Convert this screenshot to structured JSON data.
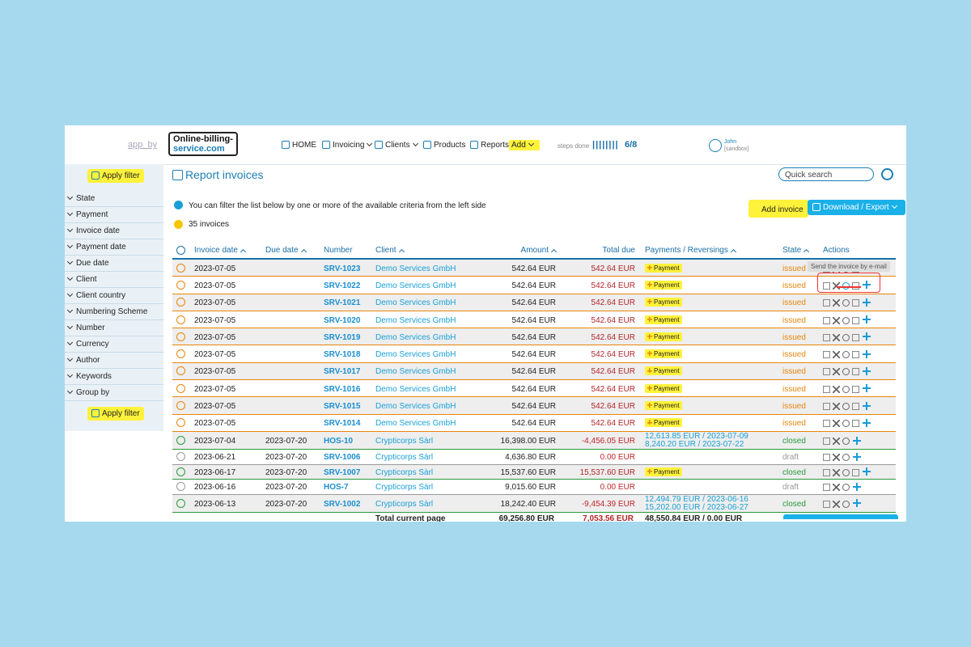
{
  "header": {
    "app_by": "app_by",
    "logo": [
      "Online-billing-",
      "service.com"
    ],
    "nav": [
      "HOME",
      "Invoicing",
      "Clients",
      "Products",
      "Reports",
      "Add"
    ],
    "steps_label": "steps done",
    "steps_bars": "||||||||",
    "steps": "6/8",
    "user": "John",
    "user_sub": "[sandbox]"
  },
  "sidebar": {
    "apply_filter": "Apply filter",
    "filters": [
      "State",
      "Payment",
      "Invoice date",
      "Payment date",
      "Due date",
      "Client",
      "Client country",
      "Numbering Scheme",
      "Number",
      "Currency",
      "Author",
      "Keywords",
      "Group by"
    ]
  },
  "main": {
    "title": "Report invoices",
    "search": "Quick search",
    "info": "You can filter the list below by one or more of the available criteria from the left side",
    "count": "35 invoices",
    "add_invoice": "Add invoice",
    "download": "Download / Export",
    "tooltip": "Send the invoice by e-mail"
  },
  "table": {
    "columns": [
      "Invoice date",
      "Due date",
      "Number",
      "Client",
      "Amount",
      "Total due",
      "Payments / Reversings",
      "State",
      "Actions"
    ],
    "rows": [
      [
        "2023-07-05",
        null,
        "SRV-1023",
        "Demo Services GmbH",
        "542.64 EUR",
        "542.64 EUR",
        "Payment",
        "issued"
      ],
      [
        "2023-07-05",
        null,
        "SRV-1022",
        "Demo Services GmbH",
        "542.64 EUR",
        "542.64 EUR",
        "Payment",
        "issued"
      ],
      [
        "2023-07-05",
        null,
        "SRV-1021",
        "Demo Services GmbH",
        "542.64 EUR",
        "542.64 EUR",
        "Payment",
        "issued"
      ],
      [
        "2023-07-05",
        null,
        "SRV-1020",
        "Demo Services GmbH",
        "542.64 EUR",
        "542.64 EUR",
        "Payment",
        "issued"
      ],
      [
        "2023-07-05",
        null,
        "SRV-1019",
        "Demo Services GmbH",
        "542.64 EUR",
        "542.64 EUR",
        "Payment",
        "issued"
      ],
      [
        "2023-07-05",
        null,
        "SRV-1018",
        "Demo Services GmbH",
        "542.64 EUR",
        "542.64 EUR",
        "Payment",
        "issued"
      ],
      [
        "2023-07-05",
        null,
        "SRV-1017",
        "Demo Services GmbH",
        "542.64 EUR",
        "542.64 EUR",
        "Payment",
        "issued"
      ],
      [
        "2023-07-05",
        null,
        "SRV-1016",
        "Demo Services GmbH",
        "542.64 EUR",
        "542.64 EUR",
        "Payment",
        "issued"
      ],
      [
        "2023-07-05",
        null,
        "SRV-1015",
        "Demo Services GmbH",
        "542.64 EUR",
        "542.64 EUR",
        "Payment",
        "issued"
      ],
      [
        "2023-07-05",
        null,
        "SRV-1014",
        "Demo Services GmbH",
        "542.64 EUR",
        "542.64 EUR",
        "Payment",
        "issued"
      ],
      [
        "2023-07-04",
        "2023-07-20",
        "HOS-10",
        "Crypticorps Sàrl",
        "16,398.00 EUR",
        "-4,456.05 EUR",
        [
          "12,613.85 EUR / 2023-07-09",
          "8,240.20 EUR / 2023-07-22"
        ],
        "closed"
      ],
      [
        "2023-06-21",
        "2023-07-20",
        "SRV-1006",
        "Crypticorps Sàrl",
        "4,636.80 EUR",
        "0.00 EUR",
        null,
        "draft"
      ],
      [
        "2023-06-17",
        "2023-07-20",
        "SRV-1007",
        "Crypticorps Sàrl",
        "15,537.60 EUR",
        "15,537.60 EUR",
        "Payment",
        "closed"
      ],
      [
        "2023-06-16",
        "2023-07-20",
        "HOS-7",
        "Crypticorps Sàrl",
        "9,015.60 EUR",
        "0.00 EUR",
        null,
        "draft"
      ],
      [
        "2023-06-13",
        "2023-07-20",
        "SRV-1002",
        "Crypticorps Sàrl",
        "18,242.40 EUR",
        "-9,454.39 EUR",
        [
          "12,494.79 EUR / 2023-06-16",
          "15,202.00 EUR / 2023-06-27"
        ],
        "closed"
      ]
    ],
    "totals": [
      "Total current page",
      "69,256.80 EUR",
      "7,053.56 EUR",
      "48,550.84 EUR / 0.00 EUR"
    ]
  }
}
